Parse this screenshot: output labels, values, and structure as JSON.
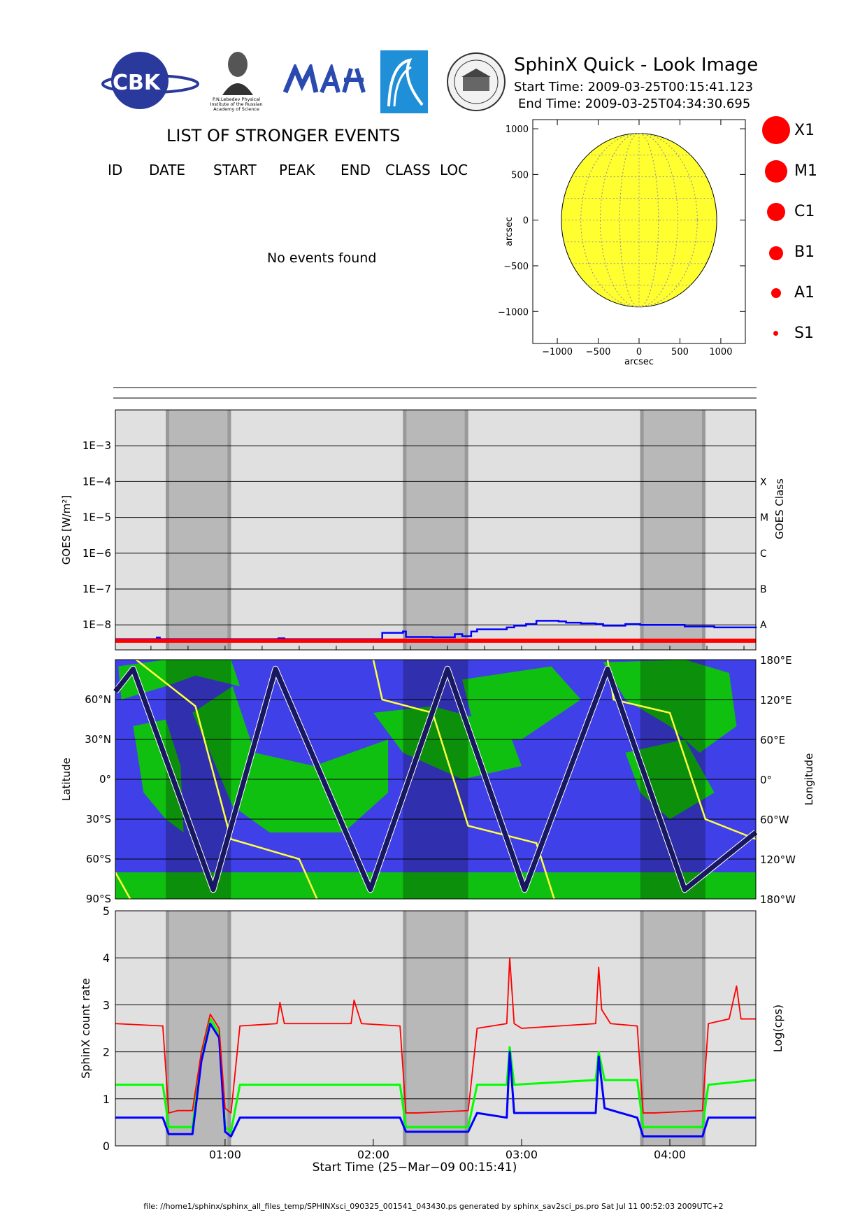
{
  "header": {
    "title": "SphinX Quick - Look Image",
    "start_time": "Start Time: 2009-03-25T00:15:41.123",
    "end_time": "End Time: 2009-03-25T04:34:30.695",
    "logo_lebedev_text": [
      "P.N.Lebedev Physical",
      "Institute of the Russian",
      "Academy of Science"
    ],
    "logo_cbk_text": "CBK"
  },
  "events": {
    "title": "LIST OF STRONGER EVENTS",
    "columns": [
      "ID",
      "DATE",
      "START",
      "PEAK",
      "END",
      "CLASS",
      "LOC"
    ],
    "empty_message": "No events found"
  },
  "legend": {
    "items": [
      {
        "label": "X1"
      },
      {
        "label": "M1"
      },
      {
        "label": "C1"
      },
      {
        "label": "B1"
      },
      {
        "label": "A1"
      },
      {
        "label": "S1"
      }
    ],
    "marker_color": "#ff0000"
  },
  "footer": "file: //home1/sphinx/sphinx_all_files_temp/SPHINXsci_090325_001541_043430.ps generated by sphinx_sav2sci_ps.pro Sat Jul 11 00:52:03 2009UTC+2",
  "colors": {
    "plot_bg": "#e0e0e0",
    "shade": "#b8b8b8",
    "goes_blue": "#0000ff",
    "goes_red": "#ff0000",
    "map_blue": "#4040e8",
    "map_green": "#10c010",
    "sun_yellow": "#ffff30"
  },
  "chart_data": [
    {
      "type": "scatter",
      "name": "solar-disk",
      "xlabel": "arcsec",
      "ylabel": "arcsec",
      "xlim": [
        -1300,
        1300
      ],
      "ylim": [
        -1350,
        1100
      ],
      "xticks": [
        -1000,
        -500,
        0,
        500,
        1000
      ],
      "yticks": [
        -1000,
        -500,
        0,
        500,
        1000
      ],
      "xtick_labels": [
        "−1000",
        "−500",
        "0",
        "500",
        "1000"
      ],
      "ytick_labels": [
        "−1000",
        "−500",
        "0",
        "500",
        "1000"
      ],
      "disk_radius": 950
    },
    {
      "type": "line",
      "name": "goes",
      "ylabel": "GOES [W/m²]",
      "y2label": "GOES Class",
      "log_scale": true,
      "ylim": [
        2e-09,
        0.01
      ],
      "yticks": [
        0.001,
        0.0001,
        1e-05,
        1e-06,
        1e-07,
        1e-08
      ],
      "ytick_labels": [
        "1E−3",
        "1E−4",
        "1E−5",
        "1E−6",
        "1E−7",
        "1E−8"
      ],
      "class_labels": [
        "X",
        "M",
        "C",
        "B",
        "A"
      ],
      "class_levels": [
        0.0001,
        1e-05,
        1e-06,
        1e-07,
        1e-08
      ],
      "xlim": [
        0.26,
        4.58
      ],
      "shaded_bands": [
        [
          0.6,
          1.04
        ],
        [
          2.2,
          2.64
        ],
        [
          3.8,
          4.24
        ]
      ],
      "series": [
        {
          "name": "",
          "color": "#0000ff",
          "x": [
            0.26,
            0.52,
            0.54,
            0.56,
            1.1,
            1.36,
            1.4,
            2.04,
            2.06,
            2.2,
            2.22,
            2.4,
            2.55,
            2.6,
            2.66,
            2.7,
            2.9,
            2.95,
            3.03,
            3.1,
            3.25,
            3.3,
            3.4,
            3.5,
            3.55,
            3.7,
            3.8,
            4.1,
            4.3,
            4.58
          ],
          "y": [
            4e-09,
            4e-09,
            4.4e-09,
            4e-09,
            4e-09,
            4.2e-09,
            4e-09,
            4e-09,
            6e-09,
            6.5e-09,
            4.6e-09,
            4.5e-09,
            5.5e-09,
            4.8e-09,
            6.5e-09,
            7.5e-09,
            8.5e-09,
            9.5e-09,
            1.05e-08,
            1.3e-08,
            1.25e-08,
            1.15e-08,
            1.1e-08,
            1.05e-08,
            9.5e-09,
            1.05e-08,
            1e-08,
            9e-09,
            8.5e-09,
            8e-09
          ]
        },
        {
          "name": "",
          "color": "#ff0000",
          "x": [
            0.26,
            4.58
          ],
          "y": [
            3.6e-09,
            3.6e-09
          ]
        }
      ]
    },
    {
      "type": "line",
      "name": "orbit-map",
      "ylabel": "Latitude",
      "y2label": "Longitude",
      "ylim": [
        -90,
        90
      ],
      "yticks": [
        60,
        30,
        0,
        -30,
        -60,
        -90
      ],
      "ytick_labels": [
        "60°N",
        "30°N",
        "0°",
        "30°S",
        "60°S",
        "90°S"
      ],
      "y2ticks": [
        180,
        120,
        60,
        0,
        -60,
        -120,
        -180
      ],
      "y2tick_labels": [
        "180°E",
        "120°E",
        "60°E",
        "0°",
        "60°W",
        "120°W",
        "180°W"
      ],
      "xlim": [
        0.26,
        4.58
      ],
      "series": [
        {
          "name": "",
          "color": "#181860",
          "x": [
            0.26,
            0.38,
            0.92,
            1.34,
            1.98,
            2.5,
            3.02,
            3.58,
            4.1,
            4.58
          ],
          "y": [
            66,
            83,
            -83,
            83,
            -83,
            83,
            -83,
            83,
            -83,
            -40
          ]
        },
        {
          "name": "",
          "color": "#ffff40",
          "x": [
            0.26,
            0.36,
            0.4,
            0.8,
            1.04,
            1.5,
            1.62,
            2.0,
            2.06,
            2.4,
            2.64,
            3.1,
            3.22,
            3.58,
            3.62,
            4.0,
            4.24,
            4.58
          ],
          "y": [
            -70,
            -90,
            90,
            55,
            -45,
            -60,
            -90,
            90,
            60,
            50,
            -35,
            -48,
            -90,
            90,
            60,
            50,
            -30,
            -45
          ]
        }
      ]
    },
    {
      "type": "line",
      "name": "sphinx-count-rate",
      "xlabel": "Start Time (25−Mar−09 00:15:41)",
      "ylabel": "SphinX count rate",
      "y2label": "Log(cps)",
      "ylim": [
        0,
        5
      ],
      "yticks": [
        0,
        1,
        2,
        3,
        4,
        5
      ],
      "ytick_labels": [
        "0",
        "1",
        "2",
        "3",
        "4",
        "5"
      ],
      "xlim": [
        0.26,
        4.58
      ],
      "xticks": [
        1,
        2,
        3,
        4
      ],
      "xtick_labels": [
        "01:00",
        "02:00",
        "03:00",
        "04:00"
      ],
      "series": [
        {
          "name": "",
          "color": "#ff0000",
          "x": [
            0.26,
            0.58,
            0.62,
            0.68,
            0.7,
            0.78,
            0.84,
            0.9,
            0.96,
            1.0,
            1.04,
            1.1,
            1.35,
            1.37,
            1.4,
            1.85,
            1.87,
            1.92,
            2.18,
            2.22,
            2.3,
            2.64,
            2.7,
            2.9,
            2.92,
            2.95,
            3.0,
            3.5,
            3.52,
            3.54,
            3.6,
            3.78,
            3.82,
            3.9,
            4.22,
            4.26,
            4.4,
            4.45,
            4.48,
            4.58
          ],
          "y": [
            2.6,
            2.55,
            0.7,
            0.75,
            0.75,
            0.75,
            2.0,
            2.8,
            2.5,
            0.8,
            0.7,
            2.55,
            2.6,
            3.05,
            2.6,
            2.6,
            3.1,
            2.6,
            2.55,
            0.7,
            0.7,
            0.75,
            2.5,
            2.6,
            4.0,
            2.6,
            2.5,
            2.6,
            3.8,
            2.9,
            2.6,
            2.55,
            0.7,
            0.7,
            0.75,
            2.6,
            2.7,
            3.4,
            2.7,
            2.7
          ]
        },
        {
          "name": "",
          "color": "#00ff00",
          "x": [
            0.26,
            0.58,
            0.62,
            0.78,
            0.84,
            0.9,
            0.96,
            1.0,
            1.04,
            1.1,
            2.18,
            2.22,
            2.64,
            2.7,
            2.9,
            2.92,
            2.95,
            3.5,
            3.52,
            3.56,
            3.78,
            3.82,
            4.22,
            4.26,
            4.58
          ],
          "y": [
            1.3,
            1.3,
            0.4,
            0.4,
            1.9,
            2.7,
            2.4,
            0.4,
            0.3,
            1.3,
            1.3,
            0.4,
            0.4,
            1.3,
            1.3,
            2.1,
            1.3,
            1.4,
            2.0,
            1.4,
            1.4,
            0.4,
            0.4,
            1.3,
            1.4
          ]
        },
        {
          "name": "",
          "color": "#0000ff",
          "x": [
            0.26,
            0.58,
            0.62,
            0.78,
            0.84,
            0.9,
            0.96,
            1.0,
            1.04,
            1.1,
            2.18,
            2.22,
            2.64,
            2.7,
            2.9,
            2.92,
            2.95,
            3.5,
            3.52,
            3.56,
            3.78,
            3.82,
            4.22,
            4.26,
            4.58
          ],
          "y": [
            0.6,
            0.6,
            0.25,
            0.25,
            1.8,
            2.6,
            2.3,
            0.3,
            0.2,
            0.6,
            0.6,
            0.3,
            0.3,
            0.7,
            0.6,
            2.0,
            0.7,
            0.7,
            1.9,
            0.8,
            0.6,
            0.2,
            0.2,
            0.6,
            0.6
          ]
        }
      ]
    }
  ]
}
